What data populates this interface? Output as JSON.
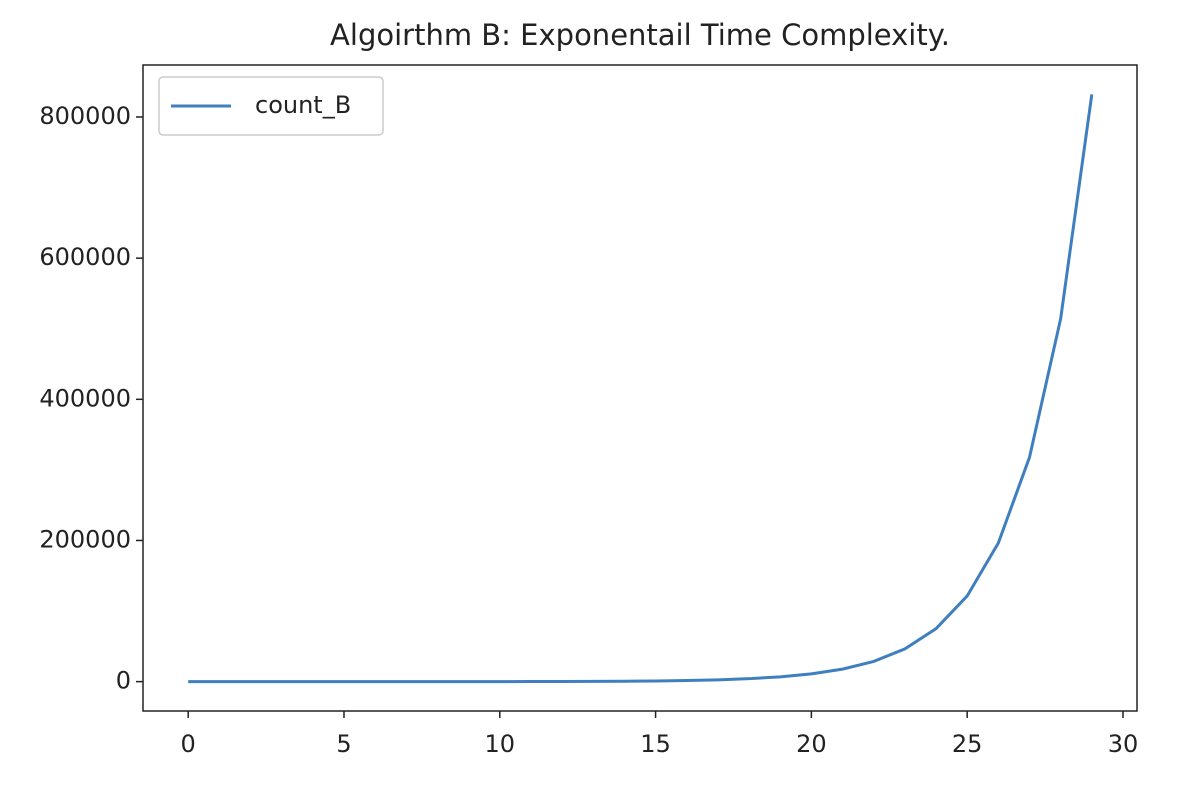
{
  "chart_data": {
    "type": "line",
    "title": "Algoirthm B: Exponentail Time Complexity.",
    "x": [
      0,
      1,
      2,
      3,
      4,
      5,
      6,
      7,
      8,
      9,
      10,
      11,
      12,
      13,
      14,
      15,
      16,
      17,
      18,
      19,
      20,
      21,
      22,
      23,
      24,
      25,
      26,
      27,
      28,
      29
    ],
    "series": [
      {
        "name": "count_B",
        "color": "#3f7fbf",
        "values": [
          1,
          1,
          2,
          3,
          5,
          8,
          13,
          21,
          34,
          55,
          89,
          144,
          233,
          377,
          610,
          987,
          1597,
          2584,
          4181,
          6765,
          10946,
          17711,
          28657,
          46368,
          75025,
          121393,
          196418,
          317811,
          514229,
          832040
        ]
      }
    ],
    "xlim": [
      -1.45,
      30.45
    ],
    "xticks": [
      0,
      5,
      10,
      15,
      20,
      25,
      30
    ],
    "ylim": [
      -41601,
      873641
    ],
    "yticks": [
      0,
      200000,
      400000,
      600000,
      800000
    ],
    "legend": "upper left"
  }
}
